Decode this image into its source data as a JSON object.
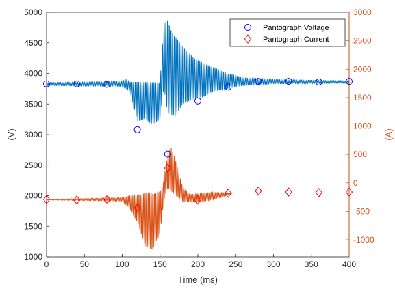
{
  "chart_data": {
    "type": "line",
    "xlabel": "Time (ms)",
    "ylabel_left": "(V)",
    "ylabel_right": "(A)",
    "xlim": [
      0,
      400
    ],
    "ylim_left": [
      1000,
      5000
    ],
    "ylim_right": [
      -1300,
      3000
    ],
    "xticks": [
      "0",
      "50",
      "100",
      "150",
      "200",
      "250",
      "300",
      "350",
      "400"
    ],
    "yticks_left": [
      "1000",
      "1500",
      "2000",
      "2500",
      "3000",
      "3500",
      "4000",
      "4500",
      "5000"
    ],
    "yticks_right": [
      "-1000",
      "-500",
      "0",
      "500",
      "1000",
      "1500",
      "2000",
      "2500",
      "3000"
    ],
    "grid": false,
    "legend_position": "top-right",
    "colors": {
      "voltage": "#0072BD",
      "current": "#D95319",
      "voltage_marker": "#0000FF",
      "current_marker": "#FF0000",
      "right_axis": "#D95319"
    },
    "series": [
      {
        "name": "Pantograph Voltage",
        "axis": "left",
        "marker": "circle",
        "x": [
          0,
          40,
          80,
          120,
          160,
          200,
          240,
          280,
          320,
          360,
          400
        ],
        "values": [
          3830,
          3830,
          3820,
          3080,
          2680,
          3550,
          3780,
          3870,
          3870,
          3860,
          3870
        ]
      },
      {
        "name": "Pantograph Current",
        "axis": "right",
        "marker": "diamond",
        "x": [
          0,
          40,
          80,
          120,
          160,
          200,
          240,
          280,
          320,
          360,
          400
        ],
        "values": [
          -290,
          -300,
          -290,
          -440,
          260,
          -300,
          -180,
          -140,
          -160,
          -170,
          -160
        ]
      }
    ]
  }
}
